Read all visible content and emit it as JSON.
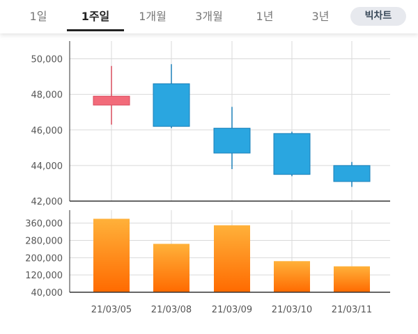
{
  "tabs": [
    {
      "label": "1일",
      "active": false
    },
    {
      "label": "1주일",
      "active": true
    },
    {
      "label": "1개월",
      "active": false
    },
    {
      "label": "3개월",
      "active": false
    },
    {
      "label": "1년",
      "active": false
    },
    {
      "label": "3년",
      "active": false
    }
  ],
  "bigchart_label": "빅차트",
  "colors": {
    "up": "#f26b7a",
    "down": "#2aa6e0",
    "volume_top": "#ffb13a",
    "volume_bottom": "#ff6a00",
    "grid": "#d9d9d9",
    "axis": "#333333"
  },
  "chart_data": [
    {
      "type": "candlestick",
      "title": "",
      "categories": [
        "21/03/05",
        "21/03/08",
        "21/03/09",
        "21/03/10",
        "21/03/11"
      ],
      "series": [
        {
          "values": [
            {
              "open": 47400,
              "high": 49600,
              "low": 46300,
              "close": 47900
            },
            {
              "open": 48600,
              "high": 49700,
              "low": 46100,
              "close": 46200
            },
            {
              "open": 46100,
              "high": 47300,
              "low": 43800,
              "close": 44700
            },
            {
              "open": 45800,
              "high": 45900,
              "low": 43400,
              "close": 43500
            },
            {
              "open": 44000,
              "high": 44200,
              "low": 42800,
              "close": 43100
            }
          ]
        }
      ],
      "yticks": [
        "50,000",
        "48,000",
        "46,000",
        "44,000",
        "42,000"
      ],
      "ylim": [
        42000,
        51000
      ],
      "grid": true
    },
    {
      "type": "bar",
      "title": "",
      "categories": [
        "21/03/05",
        "21/03/08",
        "21/03/09",
        "21/03/10",
        "21/03/11"
      ],
      "values": [
        380000,
        264000,
        350000,
        184000,
        160000
      ],
      "yticks": [
        "360,000",
        "280,000",
        "200,000",
        "120,000",
        "40,000"
      ],
      "ylim": [
        40000,
        420000
      ],
      "grid": true
    }
  ]
}
